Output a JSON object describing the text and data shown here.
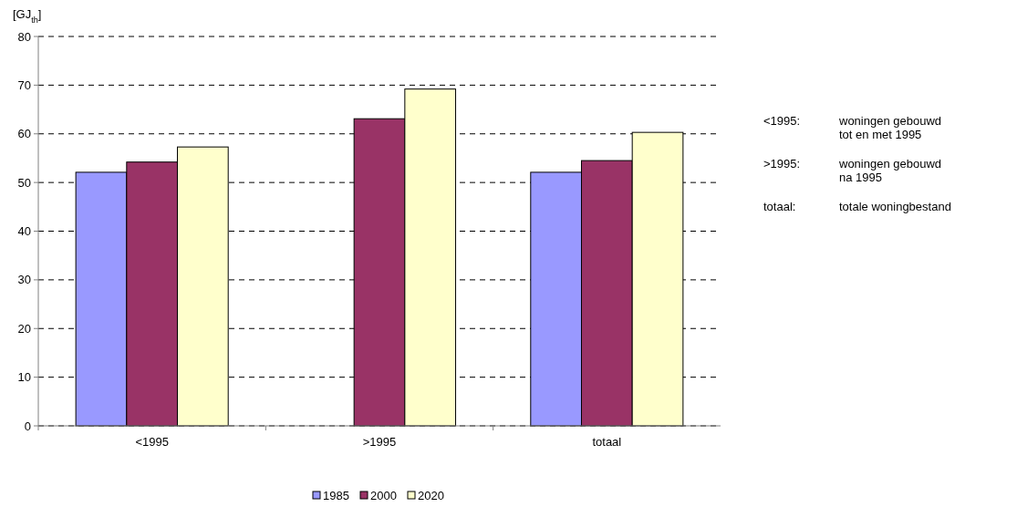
{
  "chart_data": {
    "type": "bar",
    "ylabel": "[GJ$_{th}$]",
    "categories": [
      "<1995",
      ">1995",
      "totaal"
    ],
    "series": [
      {
        "name": "1985",
        "color": "#9999ff",
        "values": [
          52.1,
          null,
          52.1
        ]
      },
      {
        "name": "2000",
        "color": "#993366",
        "values": [
          54.2,
          63.1,
          54.5
        ]
      },
      {
        "name": "2020",
        "color": "#ffffcc",
        "values": [
          57.3,
          69.2,
          60.3
        ]
      }
    ],
    "ylim": [
      0,
      80
    ],
    "yticks": [
      0,
      10,
      20,
      30,
      40,
      50,
      60,
      70,
      80
    ],
    "grid": "y",
    "legend": "bottom",
    "annotations": [
      "<1995:",
      "woningen gebouwd\ntot en met 1995",
      ">1995:",
      "woningen gebouwd\nna 1995",
      "totaal:",
      "totale woningbestand"
    ]
  }
}
